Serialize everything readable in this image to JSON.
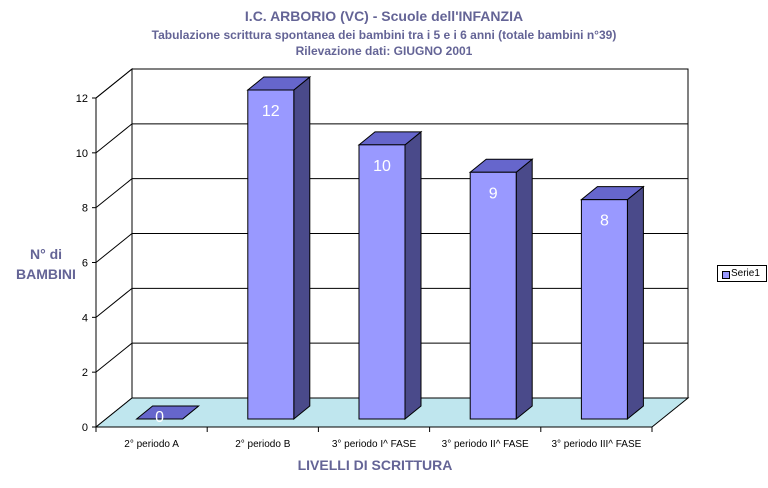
{
  "chart_data": {
    "type": "bar",
    "title": "I.C. ARBORIO (VC) - Scuole dell'INFANZIA",
    "subtitle": "Tabulazione scrittura spontanea dei bambini tra i 5 e i 6 anni (totale bambini n°39)",
    "subtitle2": "Rilevazione dati: GIUGNO 2001",
    "xlabel": "LIVELLI DI SCRITTURA",
    "ylabel_line1": "N° di",
    "ylabel_line2": "BAMBINI",
    "categories": [
      "2° periodo A",
      "2° periodo B",
      "3° periodo I^ FASE",
      "3° periodo II^ FASE",
      "3° periodo III^ FASE"
    ],
    "series": [
      {
        "name": "Serie1",
        "values": [
          0,
          12,
          10,
          9,
          8
        ]
      }
    ],
    "ylim": [
      0,
      12
    ],
    "yticks": [
      0,
      2,
      4,
      6,
      8,
      10,
      12
    ],
    "grid": true,
    "legend_position": "right",
    "colors": {
      "bar_front": "#9999ff",
      "bar_side": "#4a4a8a",
      "bar_top": "#6666cc",
      "floor": "#bfe6ee",
      "title": "#646496"
    }
  }
}
